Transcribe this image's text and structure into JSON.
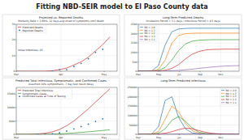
{
  "title": "Fitting NBD-SEIR model to El Paso County data",
  "chart_data": [
    {
      "type": "line",
      "title": "Projected vs. Reported Deaths",
      "subtitle": "Mortality Rate = 1.80%, 12 days avg onset of symptoms until death",
      "annotation": "Initial Infectious: 45",
      "x": [
        0,
        5,
        10,
        15,
        20,
        25,
        30,
        35,
        40,
        45,
        50,
        55,
        60,
        65
      ],
      "xlim": [
        0,
        70
      ],
      "xticks": [
        {
          "value": 0,
          "label": "Mar"
        },
        {
          "value": 31,
          "label": "Apr"
        },
        {
          "value": 61,
          "label": "May"
        }
      ],
      "ylim": [
        0,
        30
      ],
      "yticks": [
        0,
        10,
        20,
        30
      ],
      "grid": true,
      "legend": "upper left",
      "series": [
        {
          "name": "Predicted Deaths",
          "color": "#d62728",
          "type": "line",
          "values": [
            0,
            0,
            0,
            0,
            0,
            0.3,
            1,
            2,
            4,
            6,
            9,
            13,
            17,
            22
          ]
        },
        {
          "name": "Reported Deaths",
          "color": "#1f77b4",
          "type": "scatter",
          "marker": "circle",
          "values": [
            null,
            null,
            null,
            null,
            null,
            0,
            1,
            1,
            3,
            5,
            8,
            12,
            14,
            null
          ]
        }
      ]
    },
    {
      "type": "line",
      "title": "Long-Term Predicted Deaths",
      "subtitle": "Incubation Period = 5.1 days / Infectious Period = 9.5 days",
      "x": [
        0,
        20,
        40,
        60,
        80,
        100,
        120,
        140,
        160,
        180,
        200,
        220,
        240,
        260,
        280,
        300
      ],
      "xlim": [
        0,
        300
      ],
      "xticks": [
        {
          "value": 0,
          "label": "Mar"
        },
        {
          "value": 61,
          "label": "May"
        },
        {
          "value": 122,
          "label": "Jul"
        },
        {
          "value": 184,
          "label": "Sep"
        },
        {
          "value": 245,
          "label": "Nov"
        }
      ],
      "ylim": [
        0,
        2500
      ],
      "yticks": [
        0,
        500,
        1000,
        1500,
        2000,
        2500
      ],
      "grid": true,
      "legend": "upper left",
      "series": [
        {
          "name": "R0 = 2.0",
          "color": "#1f77b4",
          "values": [
            0,
            2,
            20,
            300,
            1400,
            2100,
            2250,
            2280,
            2290,
            2290,
            2290,
            2290,
            2290,
            2290,
            2290,
            2290
          ]
        },
        {
          "name": "R0 = 1.7",
          "color": "#ff7f0e",
          "values": [
            0,
            1,
            10,
            100,
            600,
            1500,
            1900,
            2000,
            2020,
            2030,
            2030,
            2030,
            2030,
            2030,
            2030,
            2030
          ]
        },
        {
          "name": "R0 = 1.5",
          "color": "#2ca02c",
          "values": [
            0,
            1,
            6,
            40,
            200,
            600,
            1100,
            1450,
            1600,
            1650,
            1670,
            1680,
            1680,
            1680,
            1680,
            1680
          ]
        },
        {
          "name": "R0 = 1.3",
          "color": "#d62728",
          "values": [
            0,
            1,
            4,
            15,
            50,
            150,
            350,
            650,
            900,
            1050,
            1130,
            1160,
            1170,
            1175,
            1175,
            1175
          ]
        },
        {
          "name": "R0 = 1.1",
          "color": "#9467bd",
          "values": [
            0,
            1,
            3,
            6,
            12,
            25,
            45,
            75,
            110,
            150,
            190,
            225,
            255,
            275,
            290,
            300
          ]
        }
      ]
    },
    {
      "type": "line",
      "title": "Predicted Total Infectious, Symptomatic, and Confirmed Cases",
      "subtitle": "Assumed 10% symptomatic, 7 day test result delay",
      "x": [
        0,
        5,
        10,
        15,
        20,
        25,
        30,
        35,
        40,
        45,
        50,
        55,
        60,
        65
      ],
      "xlim": [
        0,
        70
      ],
      "xticks": [
        {
          "value": 0,
          "label": "Mar"
        },
        {
          "value": 31,
          "label": "Apr"
        },
        {
          "value": 61,
          "label": "May"
        }
      ],
      "ylim": [
        0,
        17500
      ],
      "yticks": [
        0,
        5000,
        10000,
        15000
      ],
      "grid": true,
      "legend": "upper left",
      "series": [
        {
          "name": "Predicted Total Infectious",
          "color": "#d62728",
          "type": "line",
          "values": [
            0,
            10,
            50,
            150,
            400,
            900,
            1800,
            3200,
            5000,
            7200,
            9500,
            12000,
            14500,
            17000
          ]
        },
        {
          "name": "Symptomatic Cases",
          "color": "#2ca02c",
          "type": "line",
          "values": [
            0,
            1,
            5,
            15,
            40,
            90,
            180,
            320,
            500,
            720,
            950,
            1200,
            1450,
            1700
          ]
        },
        {
          "name": "Confirmed Cases at Time of Testing",
          "color": "#1f77b4",
          "type": "scatter",
          "marker": "circle",
          "values": [
            null,
            null,
            null,
            0,
            50,
            200,
            600,
            1200,
            2000,
            2900,
            3800,
            4800,
            5800,
            null
          ]
        }
      ]
    },
    {
      "type": "line",
      "title": "Long-Term Predicted Infectious",
      "x": [
        0,
        20,
        40,
        60,
        80,
        100,
        120,
        140,
        160,
        180,
        200,
        220,
        240,
        260,
        280,
        300
      ],
      "xlim": [
        0,
        300
      ],
      "xticks": [
        {
          "value": 0,
          "label": "Mar"
        },
        {
          "value": 61,
          "label": "May"
        },
        {
          "value": 122,
          "label": "Jul"
        },
        {
          "value": 184,
          "label": "Sep"
        },
        {
          "value": 245,
          "label": "Nov"
        }
      ],
      "ylim": [
        0,
        250000
      ],
      "yticks": [
        0,
        50000,
        100000,
        150000,
        200000,
        250000
      ],
      "grid": true,
      "legend": "upper right",
      "series": [
        {
          "name": "R0 = 2.0",
          "color": "#1f77b4",
          "values": [
            0,
            100,
            3000,
            40000,
            180000,
            200000,
            90000,
            30000,
            8000,
            2000,
            500,
            100,
            20,
            0,
            0,
            0
          ]
        },
        {
          "name": "R0 = 1.7",
          "color": "#ff7f0e",
          "values": [
            0,
            60,
            1500,
            15000,
            80000,
            150000,
            120000,
            60000,
            20000,
            6000,
            1500,
            300,
            60,
            10,
            0,
            0
          ]
        },
        {
          "name": "R0 = 1.5",
          "color": "#2ca02c",
          "values": [
            0,
            40,
            800,
            6000,
            30000,
            75000,
            95000,
            70000,
            35000,
            12000,
            4000,
            1000,
            250,
            50,
            10,
            0
          ]
        },
        {
          "name": "R0 = 1.3",
          "color": "#d62728",
          "values": [
            0,
            30,
            400,
            2000,
            6000,
            14000,
            25000,
            33000,
            30000,
            20000,
            11000,
            5000,
            2000,
            700,
            200,
            50
          ]
        },
        {
          "name": "R0 = 1.1",
          "color": "#9467bd",
          "values": [
            0,
            25,
            200,
            500,
            900,
            1400,
            2000,
            2600,
            3100,
            3400,
            3500,
            3400,
            3100,
            2700,
            2300,
            1900
          ]
        }
      ]
    }
  ]
}
